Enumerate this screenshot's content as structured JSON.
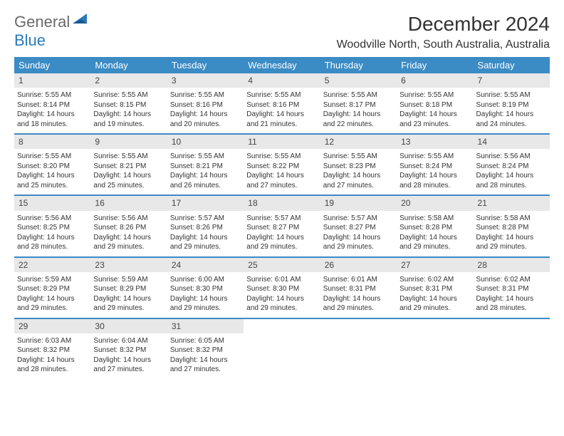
{
  "brand": {
    "general": "General",
    "blue": "Blue"
  },
  "title": "December 2024",
  "location": "Woodville North, South Australia, Australia",
  "colors": {
    "header_bg": "#3b8bc4",
    "header_text": "#ffffff",
    "daynum_bg": "#e8e8e8",
    "row_border": "#3b8bc4",
    "text": "#333333",
    "logo_gray": "#6a6a6a",
    "logo_blue": "#2a7ab8"
  },
  "day_names": [
    "Sunday",
    "Monday",
    "Tuesday",
    "Wednesday",
    "Thursday",
    "Friday",
    "Saturday"
  ],
  "weeks": [
    [
      {
        "num": "1",
        "sunrise": "Sunrise: 5:55 AM",
        "sunset": "Sunset: 8:14 PM",
        "daylight1": "Daylight: 14 hours",
        "daylight2": "and 18 minutes."
      },
      {
        "num": "2",
        "sunrise": "Sunrise: 5:55 AM",
        "sunset": "Sunset: 8:15 PM",
        "daylight1": "Daylight: 14 hours",
        "daylight2": "and 19 minutes."
      },
      {
        "num": "3",
        "sunrise": "Sunrise: 5:55 AM",
        "sunset": "Sunset: 8:16 PM",
        "daylight1": "Daylight: 14 hours",
        "daylight2": "and 20 minutes."
      },
      {
        "num": "4",
        "sunrise": "Sunrise: 5:55 AM",
        "sunset": "Sunset: 8:16 PM",
        "daylight1": "Daylight: 14 hours",
        "daylight2": "and 21 minutes."
      },
      {
        "num": "5",
        "sunrise": "Sunrise: 5:55 AM",
        "sunset": "Sunset: 8:17 PM",
        "daylight1": "Daylight: 14 hours",
        "daylight2": "and 22 minutes."
      },
      {
        "num": "6",
        "sunrise": "Sunrise: 5:55 AM",
        "sunset": "Sunset: 8:18 PM",
        "daylight1": "Daylight: 14 hours",
        "daylight2": "and 23 minutes."
      },
      {
        "num": "7",
        "sunrise": "Sunrise: 5:55 AM",
        "sunset": "Sunset: 8:19 PM",
        "daylight1": "Daylight: 14 hours",
        "daylight2": "and 24 minutes."
      }
    ],
    [
      {
        "num": "8",
        "sunrise": "Sunrise: 5:55 AM",
        "sunset": "Sunset: 8:20 PM",
        "daylight1": "Daylight: 14 hours",
        "daylight2": "and 25 minutes."
      },
      {
        "num": "9",
        "sunrise": "Sunrise: 5:55 AM",
        "sunset": "Sunset: 8:21 PM",
        "daylight1": "Daylight: 14 hours",
        "daylight2": "and 25 minutes."
      },
      {
        "num": "10",
        "sunrise": "Sunrise: 5:55 AM",
        "sunset": "Sunset: 8:21 PM",
        "daylight1": "Daylight: 14 hours",
        "daylight2": "and 26 minutes."
      },
      {
        "num": "11",
        "sunrise": "Sunrise: 5:55 AM",
        "sunset": "Sunset: 8:22 PM",
        "daylight1": "Daylight: 14 hours",
        "daylight2": "and 27 minutes."
      },
      {
        "num": "12",
        "sunrise": "Sunrise: 5:55 AM",
        "sunset": "Sunset: 8:23 PM",
        "daylight1": "Daylight: 14 hours",
        "daylight2": "and 27 minutes."
      },
      {
        "num": "13",
        "sunrise": "Sunrise: 5:55 AM",
        "sunset": "Sunset: 8:24 PM",
        "daylight1": "Daylight: 14 hours",
        "daylight2": "and 28 minutes."
      },
      {
        "num": "14",
        "sunrise": "Sunrise: 5:56 AM",
        "sunset": "Sunset: 8:24 PM",
        "daylight1": "Daylight: 14 hours",
        "daylight2": "and 28 minutes."
      }
    ],
    [
      {
        "num": "15",
        "sunrise": "Sunrise: 5:56 AM",
        "sunset": "Sunset: 8:25 PM",
        "daylight1": "Daylight: 14 hours",
        "daylight2": "and 28 minutes."
      },
      {
        "num": "16",
        "sunrise": "Sunrise: 5:56 AM",
        "sunset": "Sunset: 8:26 PM",
        "daylight1": "Daylight: 14 hours",
        "daylight2": "and 29 minutes."
      },
      {
        "num": "17",
        "sunrise": "Sunrise: 5:57 AM",
        "sunset": "Sunset: 8:26 PM",
        "daylight1": "Daylight: 14 hours",
        "daylight2": "and 29 minutes."
      },
      {
        "num": "18",
        "sunrise": "Sunrise: 5:57 AM",
        "sunset": "Sunset: 8:27 PM",
        "daylight1": "Daylight: 14 hours",
        "daylight2": "and 29 minutes."
      },
      {
        "num": "19",
        "sunrise": "Sunrise: 5:57 AM",
        "sunset": "Sunset: 8:27 PM",
        "daylight1": "Daylight: 14 hours",
        "daylight2": "and 29 minutes."
      },
      {
        "num": "20",
        "sunrise": "Sunrise: 5:58 AM",
        "sunset": "Sunset: 8:28 PM",
        "daylight1": "Daylight: 14 hours",
        "daylight2": "and 29 minutes."
      },
      {
        "num": "21",
        "sunrise": "Sunrise: 5:58 AM",
        "sunset": "Sunset: 8:28 PM",
        "daylight1": "Daylight: 14 hours",
        "daylight2": "and 29 minutes."
      }
    ],
    [
      {
        "num": "22",
        "sunrise": "Sunrise: 5:59 AM",
        "sunset": "Sunset: 8:29 PM",
        "daylight1": "Daylight: 14 hours",
        "daylight2": "and 29 minutes."
      },
      {
        "num": "23",
        "sunrise": "Sunrise: 5:59 AM",
        "sunset": "Sunset: 8:29 PM",
        "daylight1": "Daylight: 14 hours",
        "daylight2": "and 29 minutes."
      },
      {
        "num": "24",
        "sunrise": "Sunrise: 6:00 AM",
        "sunset": "Sunset: 8:30 PM",
        "daylight1": "Daylight: 14 hours",
        "daylight2": "and 29 minutes."
      },
      {
        "num": "25",
        "sunrise": "Sunrise: 6:01 AM",
        "sunset": "Sunset: 8:30 PM",
        "daylight1": "Daylight: 14 hours",
        "daylight2": "and 29 minutes."
      },
      {
        "num": "26",
        "sunrise": "Sunrise: 6:01 AM",
        "sunset": "Sunset: 8:31 PM",
        "daylight1": "Daylight: 14 hours",
        "daylight2": "and 29 minutes."
      },
      {
        "num": "27",
        "sunrise": "Sunrise: 6:02 AM",
        "sunset": "Sunset: 8:31 PM",
        "daylight1": "Daylight: 14 hours",
        "daylight2": "and 29 minutes."
      },
      {
        "num": "28",
        "sunrise": "Sunrise: 6:02 AM",
        "sunset": "Sunset: 8:31 PM",
        "daylight1": "Daylight: 14 hours",
        "daylight2": "and 28 minutes."
      }
    ],
    [
      {
        "num": "29",
        "sunrise": "Sunrise: 6:03 AM",
        "sunset": "Sunset: 8:32 PM",
        "daylight1": "Daylight: 14 hours",
        "daylight2": "and 28 minutes."
      },
      {
        "num": "30",
        "sunrise": "Sunrise: 6:04 AM",
        "sunset": "Sunset: 8:32 PM",
        "daylight1": "Daylight: 14 hours",
        "daylight2": "and 27 minutes."
      },
      {
        "num": "31",
        "sunrise": "Sunrise: 6:05 AM",
        "sunset": "Sunset: 8:32 PM",
        "daylight1": "Daylight: 14 hours",
        "daylight2": "and 27 minutes."
      },
      null,
      null,
      null,
      null
    ]
  ]
}
